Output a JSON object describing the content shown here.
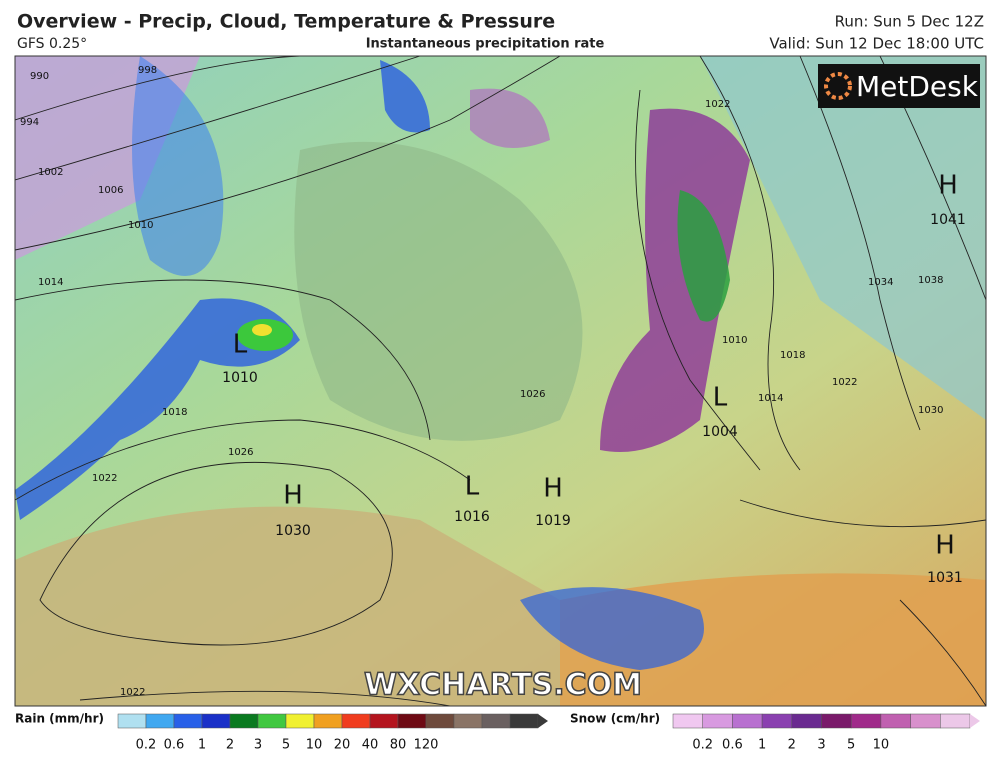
{
  "header": {
    "title": "Overview - Precip, Cloud, Temperature & Pressure",
    "model": "GFS 0.25°",
    "subtitle": "Instantaneous precipitation rate",
    "run": "Run: Sun 5 Dec 12Z",
    "valid": "Valid: Sun 12 Dec 18:00 UTC"
  },
  "logo": "MetDesk",
  "watermark": "WXCHARTS.COM",
  "pressure_centers": [
    {
      "symbol": "H",
      "value": "1041"
    },
    {
      "symbol": "L",
      "value": "1010"
    },
    {
      "symbol": "L",
      "value": "1004"
    },
    {
      "symbol": "H",
      "value": "1030"
    },
    {
      "symbol": "L",
      "value": "1016"
    },
    {
      "symbol": "H",
      "value": "1019"
    },
    {
      "symbol": "H",
      "value": "1031"
    }
  ],
  "isobar_labels": [
    "990",
    "998",
    "994",
    "1002",
    "1006",
    "1010",
    "1014",
    "1018",
    "1022",
    "1026",
    "1026",
    "1022",
    "1034",
    "1038",
    "1030",
    "1018",
    "1022",
    "1014",
    "1010",
    "1022"
  ],
  "legend": {
    "rain": {
      "label": "Rain (mm/hr)",
      "ticks": [
        "0.2",
        "0.6",
        "1",
        "2",
        "3",
        "5",
        "10",
        "20",
        "40",
        "80",
        "120"
      ]
    },
    "snow": {
      "label": "Snow (cm/hr)",
      "ticks": [
        "0.2",
        "0.6",
        "1",
        "2",
        "3",
        "5",
        "10"
      ]
    }
  }
}
